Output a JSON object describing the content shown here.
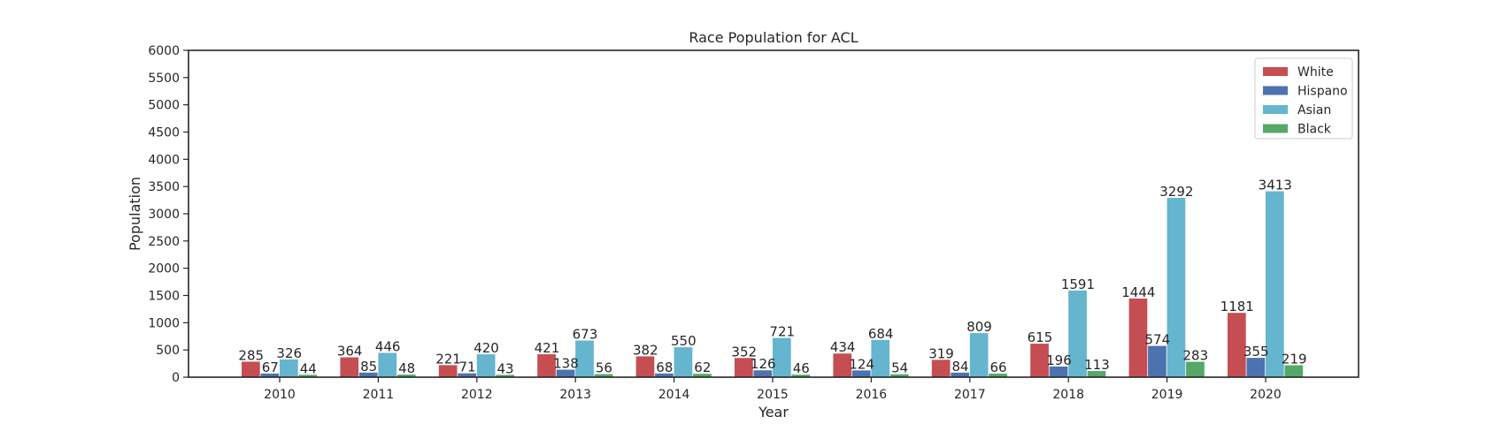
{
  "chart_data": {
    "type": "bar",
    "title": "Race Population for ACL",
    "xlabel": "Year",
    "ylabel": "Population",
    "categories": [
      "2010",
      "2011",
      "2012",
      "2013",
      "2014",
      "2015",
      "2016",
      "2017",
      "2018",
      "2019",
      "2020"
    ],
    "ylim": [
      0,
      6000
    ],
    "yticks": [
      0,
      500,
      1000,
      1500,
      2000,
      2500,
      3000,
      3500,
      4000,
      4500,
      5000,
      5500,
      6000
    ],
    "grid": false,
    "legend_position": "top-right",
    "series": [
      {
        "name": "White",
        "color": "#c44e52",
        "values": [
          285,
          364,
          221,
          421,
          382,
          352,
          434,
          319,
          615,
          1444,
          1181
        ]
      },
      {
        "name": "Hispano",
        "color": "#4c72b0",
        "values": [
          67,
          85,
          71,
          138,
          68,
          126,
          124,
          84,
          196,
          574,
          355
        ]
      },
      {
        "name": "Asian",
        "color": "#64b5cd",
        "values": [
          326,
          446,
          420,
          673,
          550,
          721,
          684,
          809,
          1591,
          3292,
          3413
        ]
      },
      {
        "name": "Black",
        "color": "#55a868",
        "values": [
          44,
          48,
          43,
          56,
          62,
          46,
          54,
          66,
          113,
          283,
          219
        ]
      }
    ]
  }
}
